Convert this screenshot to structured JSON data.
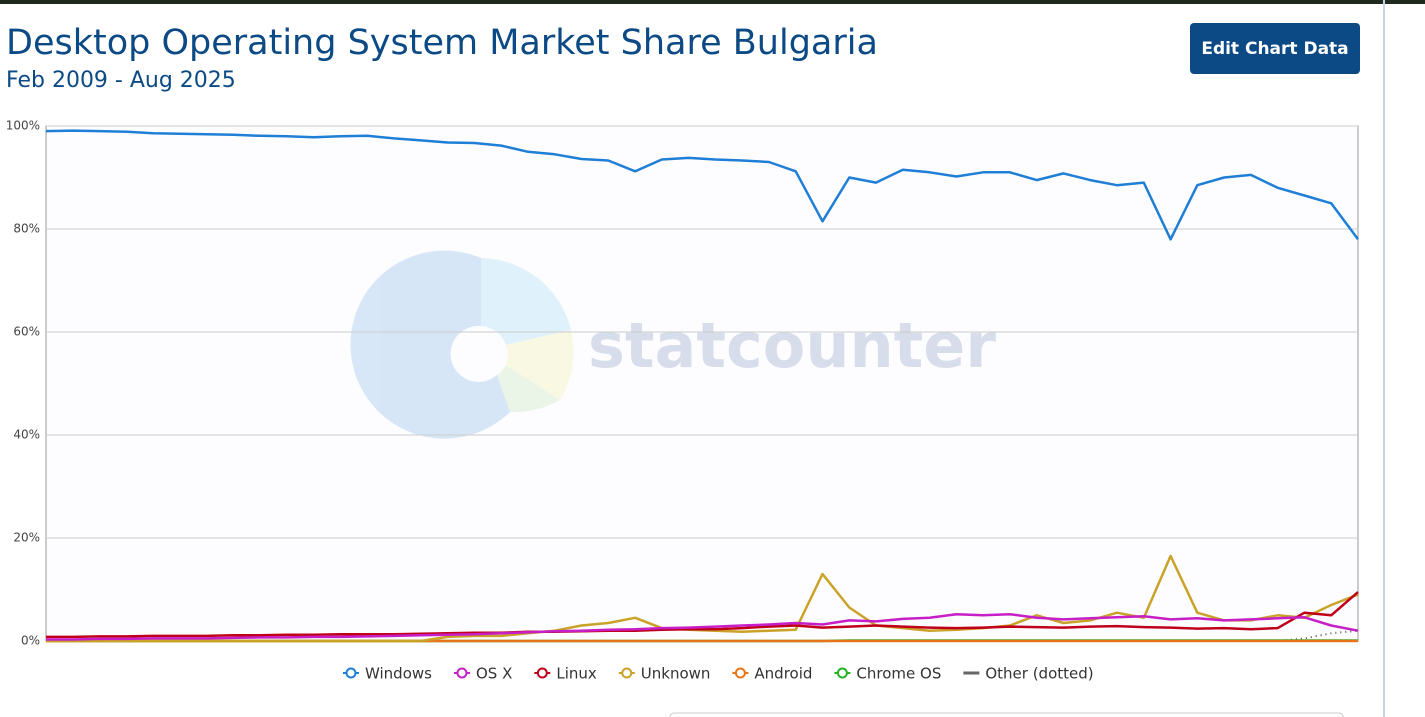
{
  "chart_data": {
    "type": "line",
    "title": "Desktop Operating System Market Share Bulgaria",
    "subtitle": "Feb 2009 - Aug 2025",
    "button": "Edit Chart Data",
    "watermark": "statcounter",
    "ylim": [
      0,
      100
    ],
    "yticks": [
      {
        "value": 0,
        "label": "0%"
      },
      {
        "value": 20,
        "label": "20%"
      },
      {
        "value": 40,
        "label": "40%"
      },
      {
        "value": 60,
        "label": "60%"
      },
      {
        "value": 80,
        "label": "80%"
      },
      {
        "value": 100,
        "label": "100%"
      }
    ],
    "grid": true,
    "legend": "bottom",
    "series": [
      {
        "name": "Windows",
        "color": "#1f7ed6",
        "values": [
          99,
          99.1,
          99,
          98.9,
          98.6,
          98.5,
          98.4,
          98.3,
          98.1,
          98,
          97.8,
          98,
          98.1,
          97.6,
          97.2,
          96.8,
          96.7,
          96.2,
          95,
          94.5,
          93.6,
          93.3,
          91.2,
          93.5,
          93.8,
          93.5,
          93.3,
          93,
          91.2,
          81.5,
          90,
          89,
          91.5,
          91,
          90.2,
          91,
          91,
          89.5,
          90.8,
          89.5,
          88.5,
          89,
          78,
          88.5,
          90,
          90.5,
          88,
          86.5,
          85,
          78
        ]
      },
      {
        "name": "OS X",
        "color": "#c71fc7",
        "values": [
          0.3,
          0.3,
          0.4,
          0.4,
          0.5,
          0.5,
          0.5,
          0.6,
          0.7,
          0.7,
          0.8,
          0.8,
          0.9,
          1,
          1.1,
          1.2,
          1.3,
          1.5,
          1.7,
          1.9,
          2,
          2.2,
          2.3,
          2.5,
          2.6,
          2.8,
          3,
          3.2,
          3.5,
          3.2,
          4,
          3.8,
          4.3,
          4.5,
          5.2,
          5,
          5.2,
          4.5,
          4.2,
          4.4,
          4.6,
          4.8,
          4.2,
          4.4,
          4,
          4.2,
          4.4,
          4.6,
          3,
          2
        ]
      },
      {
        "name": "Linux",
        "color": "#c0001a",
        "values": [
          0.8,
          0.8,
          0.9,
          0.9,
          1,
          1,
          1,
          1.1,
          1.1,
          1.2,
          1.2,
          1.3,
          1.3,
          1.3,
          1.4,
          1.5,
          1.6,
          1.6,
          1.8,
          1.8,
          1.9,
          2,
          2,
          2.2,
          2.3,
          2.3,
          2.5,
          2.8,
          3,
          2.6,
          2.8,
          3,
          2.8,
          2.6,
          2.5,
          2.6,
          2.8,
          2.7,
          2.6,
          2.8,
          2.9,
          2.7,
          2.6,
          2.4,
          2.5,
          2.3,
          2.5,
          5.5,
          5,
          9.5
        ]
      },
      {
        "name": "Unknown",
        "color": "#c9a227",
        "values": [
          0,
          0,
          0,
          0,
          0,
          0,
          0,
          0,
          0,
          0,
          0,
          0,
          0,
          0,
          0,
          0.8,
          1,
          1,
          1.5,
          2,
          3,
          3.5,
          4.5,
          2.5,
          2.2,
          2,
          1.8,
          2,
          2.2,
          13,
          6.5,
          3,
          2.5,
          2,
          2.2,
          2.5,
          3,
          5,
          3.5,
          4,
          5.5,
          4.5,
          16.5,
          5.5,
          4,
          4,
          5,
          4.5,
          7,
          9
        ]
      },
      {
        "name": "Android",
        "color": "#e8751a",
        "values": [
          0,
          0,
          0,
          0,
          0,
          0,
          0,
          0,
          0,
          0,
          0,
          0,
          0,
          0,
          0,
          0,
          0,
          0,
          0,
          0,
          0,
          0,
          0,
          0,
          0,
          0,
          0,
          0,
          0,
          0,
          0,
          0,
          0,
          0,
          0,
          0,
          0,
          0,
          0,
          0,
          0,
          0,
          0,
          0,
          0,
          0,
          0,
          0,
          0,
          0
        ]
      },
      {
        "name": "Chrome OS",
        "color": "#22b422",
        "values": [
          0,
          0,
          0,
          0,
          0,
          0,
          0,
          0,
          0,
          0,
          0,
          0,
          0,
          0,
          0,
          0,
          0,
          0,
          0,
          0,
          0,
          0,
          0,
          0,
          0,
          0,
          0,
          0,
          0,
          0,
          0.1,
          0.1,
          0.1,
          0.1,
          0.1,
          0.1,
          0.1,
          0.1,
          0.1,
          0.1,
          0.1,
          0.1,
          0.1,
          0.1,
          0.1,
          0.1,
          0.1,
          0.1,
          0.1,
          0.1
        ]
      },
      {
        "name": "Other (dotted)",
        "color": "#555555",
        "dotted": true,
        "values": [
          0,
          0,
          0,
          0,
          0,
          0,
          0,
          0,
          0,
          0,
          0,
          0,
          0,
          0,
          0,
          0,
          0,
          0,
          0,
          0,
          0,
          0,
          0,
          0,
          0,
          0,
          0,
          0,
          0,
          0,
          0,
          0,
          0,
          0,
          0,
          0,
          0,
          0,
          0,
          0,
          0,
          0,
          0,
          0,
          0,
          0,
          0,
          0.5,
          1.5,
          2
        ]
      }
    ]
  }
}
